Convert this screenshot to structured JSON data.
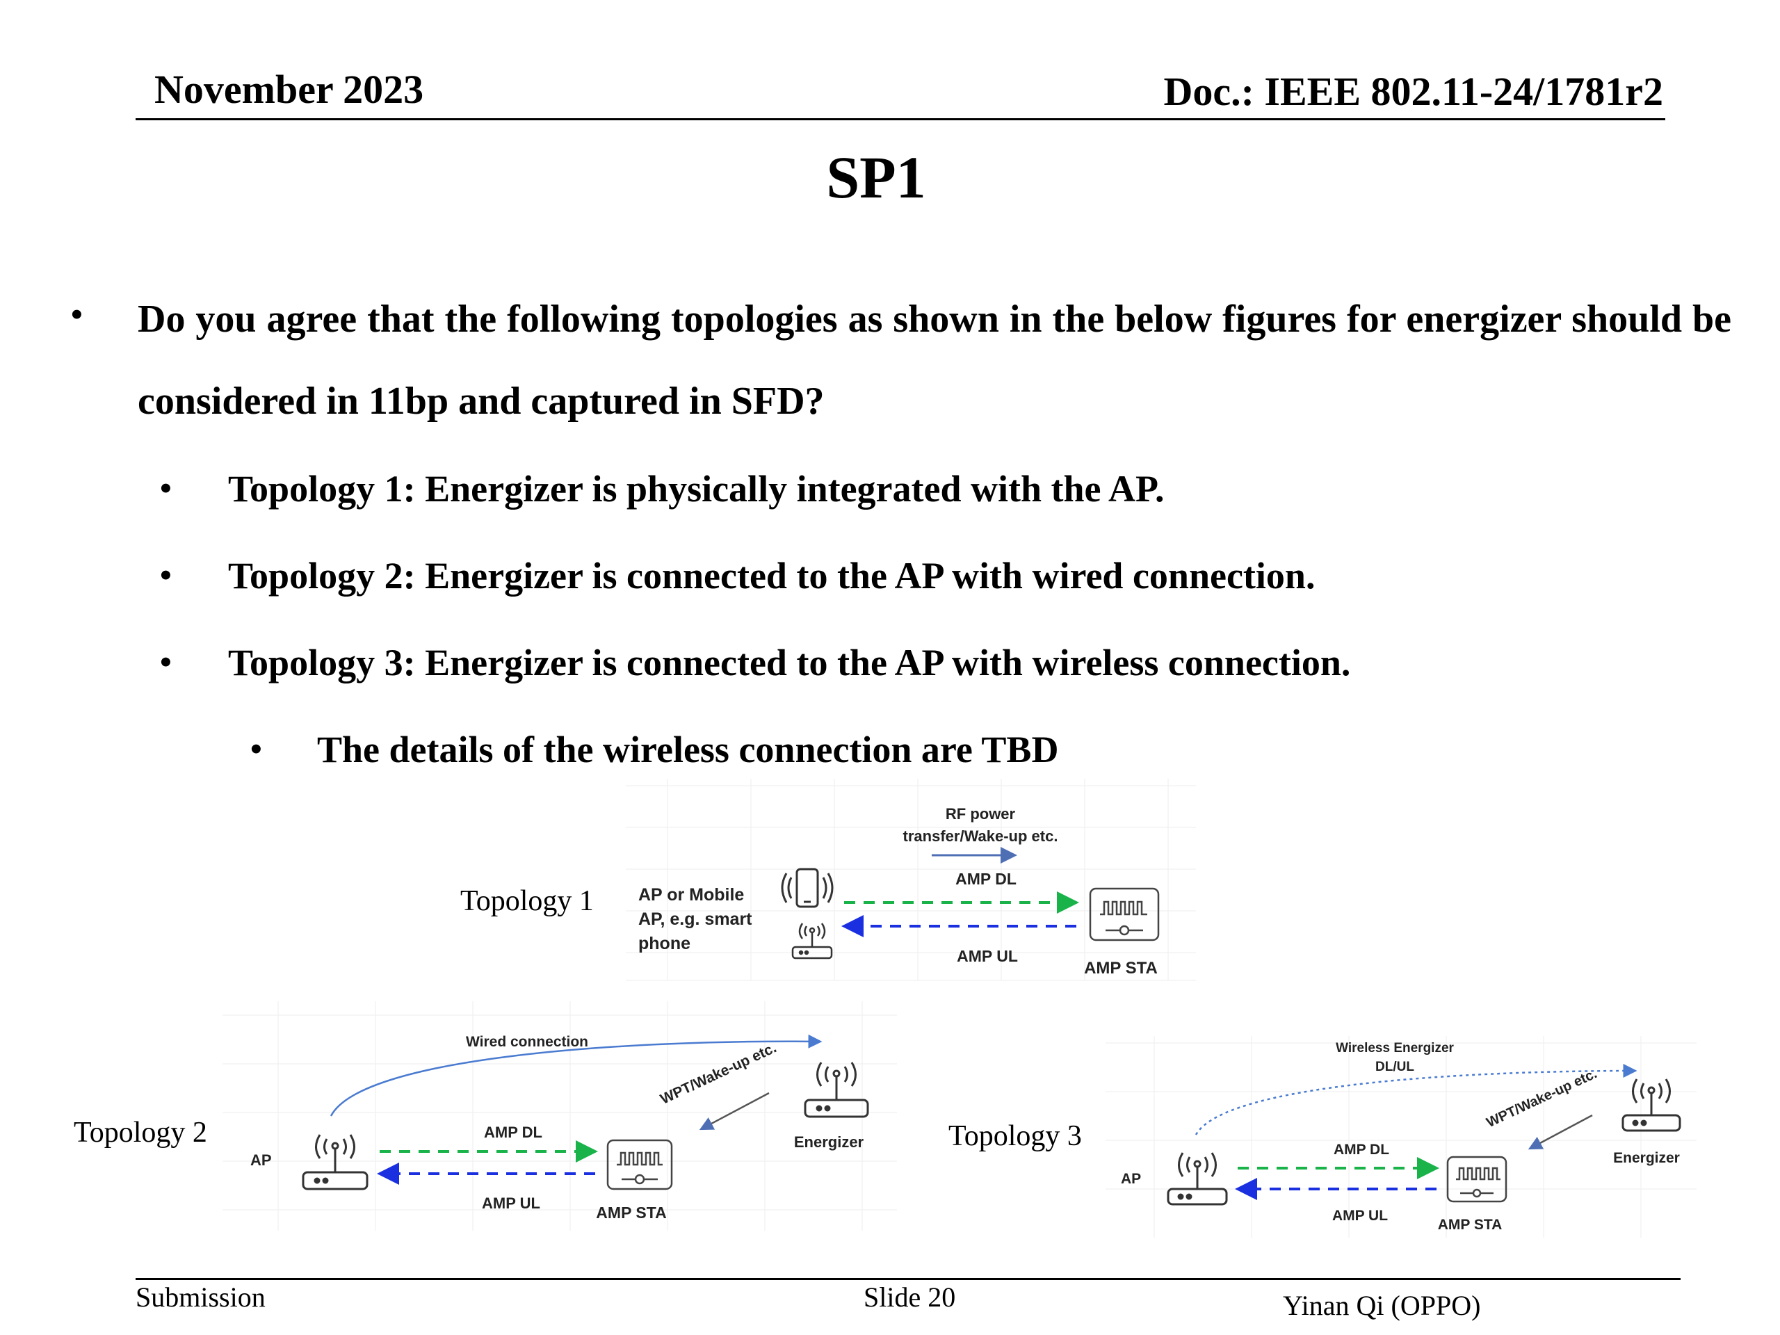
{
  "header": {
    "date": "November 2023",
    "doc": "Doc.: IEEE 802.11-24/1781r2"
  },
  "title": "SP1",
  "body": {
    "question": "Do you agree that the following topologies as shown in the below figures for energizer should be considered in 11bp and captured in SFD?",
    "items": [
      "Topology 1: Energizer is physically integrated with the AP.",
      "Topology 2: Energizer is connected to the AP with wired connection.",
      "Topology 3: Energizer is connected to the AP with wireless connection."
    ],
    "subitem": "The details of the wireless connection are TBD"
  },
  "figures": {
    "t1": {
      "label": "Topology 1",
      "ap_line1": "AP or Mobile",
      "ap_line2": "AP, e.g. smart",
      "ap_line3": "phone",
      "rf_line1": "RF power",
      "rf_line2": "transfer/Wake-up etc.",
      "dl": "AMP DL",
      "ul": "AMP UL",
      "sta": "AMP STA"
    },
    "t2": {
      "label": "Topology 2",
      "ap": "AP",
      "wired": "Wired connection",
      "wpt": "WPT/Wake-up etc.",
      "energizer": "Energizer",
      "dl": "AMP DL",
      "ul": "AMP UL",
      "sta": "AMP STA"
    },
    "t3": {
      "label": "Topology 3",
      "ap": "AP",
      "wireless_line1": "Wireless Energizer",
      "wireless_line2": "DL/UL",
      "wpt": "WPT/Wake-up etc.",
      "energizer": "Energizer",
      "dl": "AMP DL",
      "ul": "AMP UL",
      "sta": "AMP STA"
    }
  },
  "footer": {
    "left": "Submission",
    "center": "Slide 20",
    "right": "Yinan Qi (OPPO)"
  },
  "colors": {
    "dl_arrow": "#19b34a",
    "ul_arrow": "#1a2fe0",
    "curve": "#4a7bd0"
  }
}
